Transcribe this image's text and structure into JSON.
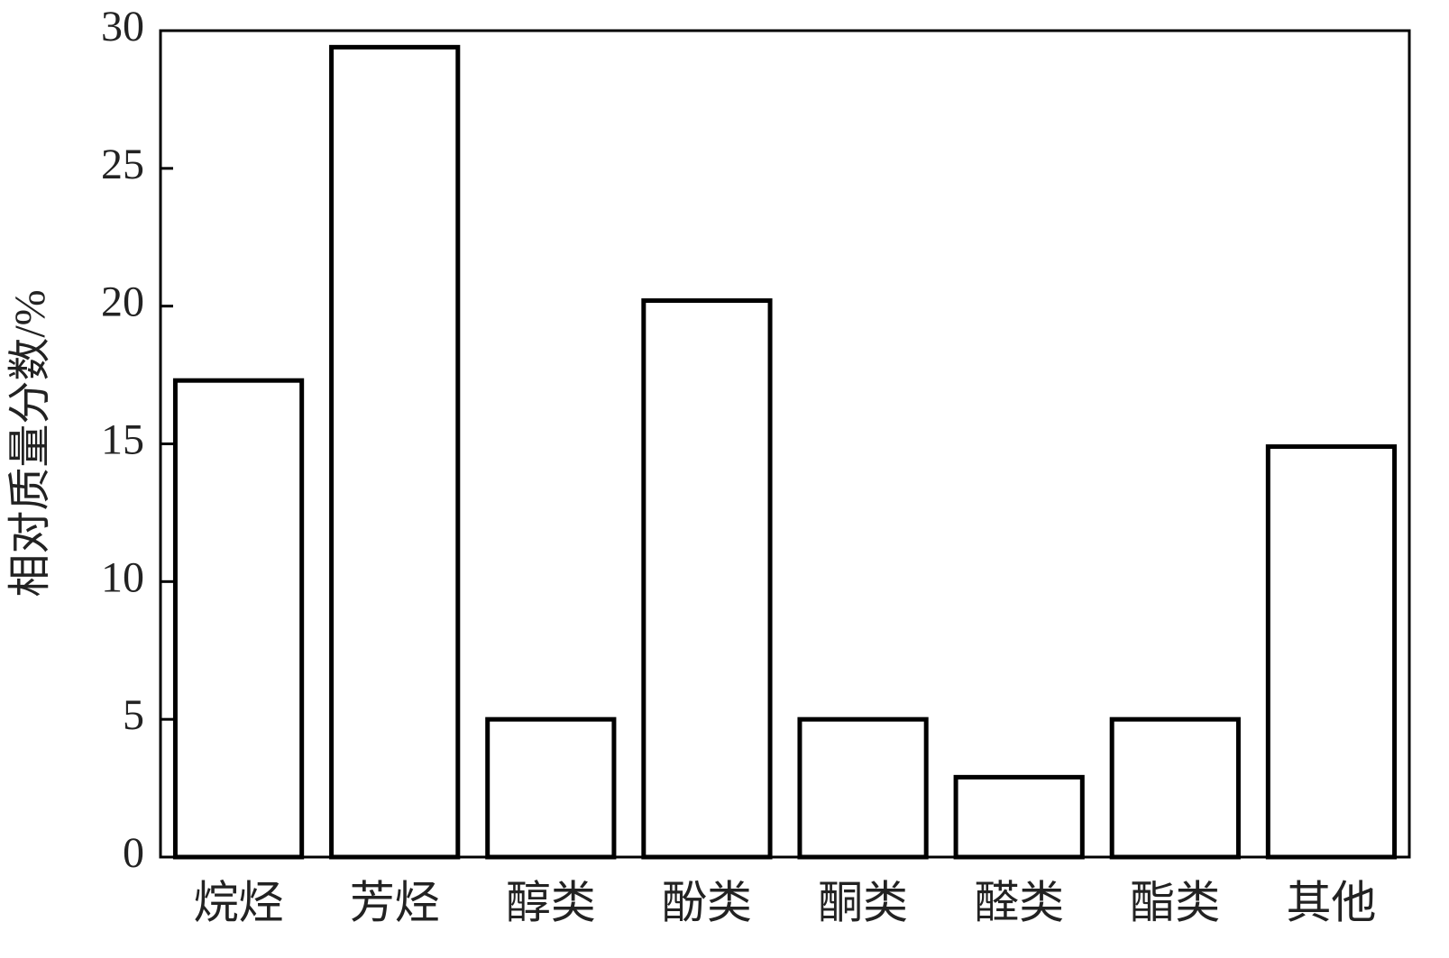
{
  "chart_data": {
    "type": "bar",
    "ylabel": "相对质量分数/%",
    "categories": [
      "烷烃",
      "芳烃",
      "醇类",
      "酚类",
      "酮类",
      "醛类",
      "酯类",
      "其他"
    ],
    "values": [
      17.3,
      29.4,
      5.0,
      20.2,
      5.0,
      2.9,
      5.0,
      14.9
    ],
    "color": "#ffffff",
    "edgecolor": "#000000",
    "ylim": [
      0,
      30
    ],
    "yticks": [
      0,
      5,
      10,
      15,
      20,
      25,
      30
    ],
    "grid": false
  }
}
